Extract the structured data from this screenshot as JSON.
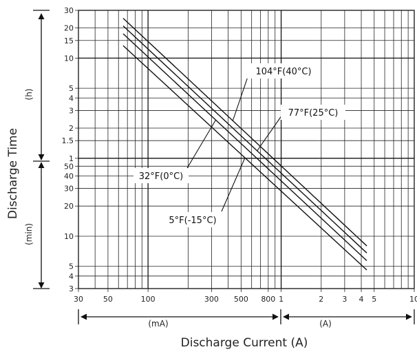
{
  "chart_data": {
    "type": "line",
    "title": "",
    "xlabel": "Discharge Current (A)",
    "ylabel": "Discharge Time",
    "x_scale": "log",
    "y_scale": "log",
    "grid": true,
    "xlim_mA": [
      30,
      10000
    ],
    "ylim_min": [
      3,
      1800
    ],
    "x_ticks": [
      {
        "label": "30",
        "value_mA": 30
      },
      {
        "label": "50",
        "value_mA": 50
      },
      {
        "label": "100",
        "value_mA": 100
      },
      {
        "label": "300",
        "value_mA": 300
      },
      {
        "label": "500",
        "value_mA": 500
      },
      {
        "label": "800",
        "value_mA": 800
      },
      {
        "label": "1",
        "value_mA": 1000
      },
      {
        "label": "2",
        "value_mA": 2000
      },
      {
        "label": "3",
        "value_mA": 3000
      },
      {
        "label": "4",
        "value_mA": 4000
      },
      {
        "label": "5",
        "value_mA": 5000
      },
      {
        "label": "10",
        "value_mA": 10000
      }
    ],
    "x_unit_ranges": [
      {
        "label": "(mA)",
        "from_mA": 30,
        "to_mA": 1000
      },
      {
        "label": "(A)",
        "from_mA": 1000,
        "to_mA": 10000
      }
    ],
    "y_ticks": [
      {
        "label": "30",
        "value_min": 1800
      },
      {
        "label": "20",
        "value_min": 1200
      },
      {
        "label": "15",
        "value_min": 900
      },
      {
        "label": "10",
        "value_min": 600
      },
      {
        "label": "5",
        "value_min": 300
      },
      {
        "label": "4",
        "value_min": 240
      },
      {
        "label": "3",
        "value_min": 180
      },
      {
        "label": "2",
        "value_min": 120
      },
      {
        "label": "1.5",
        "value_min": 90
      },
      {
        "label": "1",
        "value_min": 60
      },
      {
        "label": "50",
        "value_min": 50
      },
      {
        "label": "40",
        "value_min": 40
      },
      {
        "label": "30",
        "value_min": 30
      },
      {
        "label": "20",
        "value_min": 20
      },
      {
        "label": "10",
        "value_min": 10
      },
      {
        "label": "5",
        "value_min": 5
      },
      {
        "label": "4",
        "value_min": 4
      },
      {
        "label": "3",
        "value_min": 3
      }
    ],
    "y_unit_ranges": [
      {
        "label": "(h)",
        "from_min": 60,
        "to_min": 1800
      },
      {
        "label": "(min)",
        "from_min": 3,
        "to_min": 60
      }
    ],
    "series": [
      {
        "name": "104°F(40°C)",
        "x_mA": [
          65,
          4400
        ],
        "y_min": [
          1500,
          8.0
        ]
      },
      {
        "name": "77°F(25°C)",
        "x_mA": [
          65,
          4400
        ],
        "y_min": [
          1260,
          6.8
        ]
      },
      {
        "name": "32°F(0°C)",
        "x_mA": [
          65,
          4400
        ],
        "y_min": [
          1050,
          5.7
        ]
      },
      {
        "name": "5°F(-15°C)",
        "x_mA": [
          65,
          4400
        ],
        "y_min": [
          800,
          4.6
        ]
      }
    ],
    "annotations": [
      {
        "text": "104°F(40°C)",
        "series": "104°F(40°C)"
      },
      {
        "text": "77°F(25°C)",
        "series": "77°F(25°C)"
      },
      {
        "text": "32°F(0°C)",
        "series": "32°F(0°C)"
      },
      {
        "text": "5°F(-15°C)",
        "series": "5°F(-15°C)"
      }
    ]
  }
}
